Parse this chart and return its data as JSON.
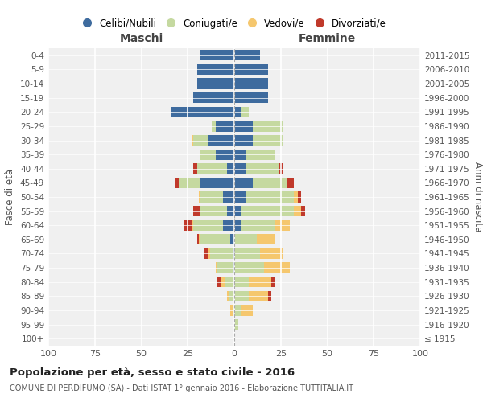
{
  "age_groups": [
    "100+",
    "95-99",
    "90-94",
    "85-89",
    "80-84",
    "75-79",
    "70-74",
    "65-69",
    "60-64",
    "55-59",
    "50-54",
    "45-49",
    "40-44",
    "35-39",
    "30-34",
    "25-29",
    "20-24",
    "15-19",
    "10-14",
    "5-9",
    "0-4"
  ],
  "birth_years": [
    "≤ 1915",
    "1916-1920",
    "1921-1925",
    "1926-1930",
    "1931-1935",
    "1936-1940",
    "1941-1945",
    "1946-1950",
    "1951-1955",
    "1956-1960",
    "1961-1965",
    "1966-1970",
    "1971-1975",
    "1976-1980",
    "1981-1985",
    "1986-1990",
    "1991-1995",
    "1996-2000",
    "2001-2005",
    "2006-2010",
    "2011-2015"
  ],
  "maschi": {
    "celibe": [
      0,
      0,
      0,
      0,
      0,
      1,
      1,
      2,
      6,
      4,
      6,
      18,
      4,
      10,
      14,
      10,
      34,
      22,
      20,
      20,
      18
    ],
    "coniugato": [
      0,
      0,
      1,
      3,
      5,
      8,
      12,
      16,
      16,
      14,
      12,
      12,
      16,
      8,
      8,
      2,
      0,
      0,
      0,
      0,
      0
    ],
    "vedovo": [
      0,
      0,
      1,
      1,
      2,
      1,
      1,
      1,
      1,
      0,
      1,
      0,
      0,
      0,
      1,
      0,
      0,
      0,
      0,
      0,
      0
    ],
    "divorziato": [
      0,
      0,
      0,
      0,
      2,
      0,
      2,
      1,
      4,
      4,
      0,
      2,
      2,
      0,
      0,
      0,
      0,
      0,
      0,
      0,
      0
    ]
  },
  "femmine": {
    "nubile": [
      0,
      0,
      0,
      0,
      0,
      0,
      0,
      0,
      4,
      4,
      6,
      10,
      6,
      6,
      10,
      10,
      4,
      18,
      18,
      18,
      14
    ],
    "coniugata": [
      0,
      2,
      4,
      8,
      8,
      16,
      14,
      12,
      18,
      28,
      26,
      18,
      18,
      16,
      16,
      16,
      4,
      0,
      0,
      0,
      0
    ],
    "vedova": [
      0,
      0,
      6,
      10,
      12,
      14,
      12,
      10,
      8,
      4,
      2,
      0,
      0,
      0,
      0,
      0,
      0,
      0,
      0,
      0,
      0
    ],
    "divorziata": [
      0,
      0,
      0,
      2,
      2,
      0,
      0,
      0,
      0,
      2,
      2,
      4,
      2,
      0,
      0,
      0,
      0,
      0,
      0,
      0,
      0
    ]
  },
  "color_celibe": "#3E6B9E",
  "color_coniugato": "#C5D9A0",
  "color_vedovo": "#F5C76E",
  "color_divorziato": "#C0392B",
  "title": "Popolazione per età, sesso e stato civile - 2016",
  "subtitle": "COMUNE DI PERDIFUMO (SA) - Dati ISTAT 1° gennaio 2016 - Elaborazione TUTTITALIA.IT",
  "xlabel_left": "Maschi",
  "xlabel_right": "Femmine",
  "ylabel_left": "Fasce di età",
  "ylabel_right": "Anni di nascita",
  "xlim": 100,
  "bg_color": "#f0f0f0",
  "grid_color": "#ffffff",
  "legend_labels": [
    "Celibi/Nubili",
    "Coniugati/e",
    "Vedovi/e",
    "Divorziati/e"
  ]
}
